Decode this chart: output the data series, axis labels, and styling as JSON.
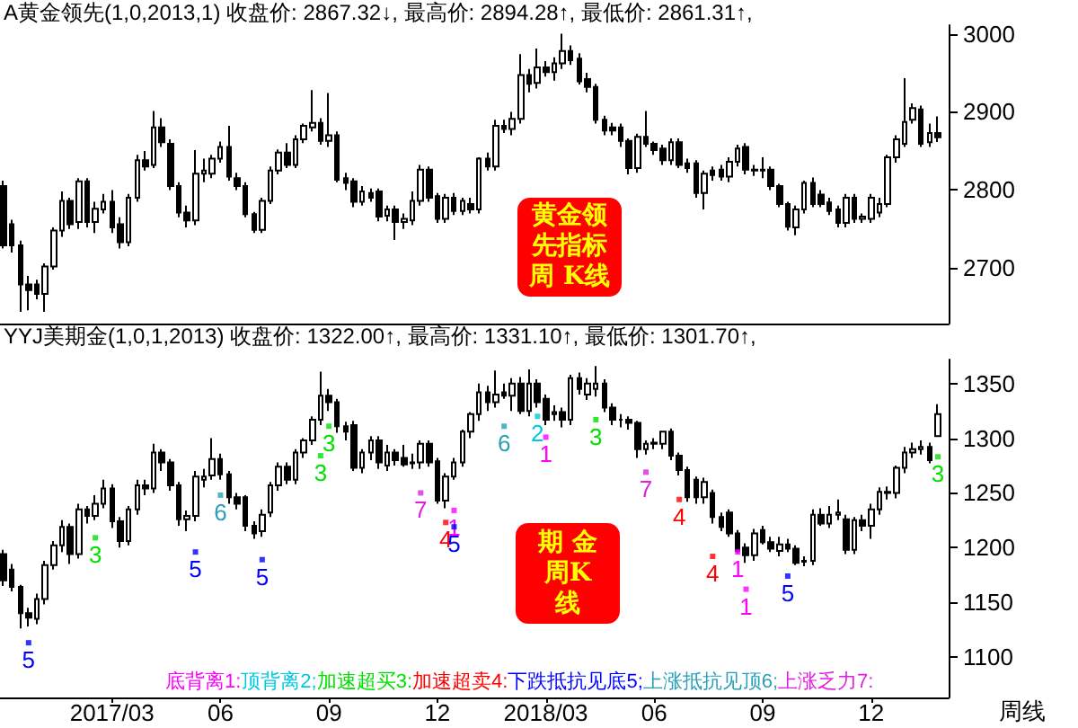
{
  "chart_data": [
    {
      "type": "candlestick",
      "title": "A黄金领先(1,0,2013,1) 收盘价: 2867.32↓, 最高价: 2894.28↑, 最低价: 2861.31↑,",
      "color": "#000000",
      "xlim": [
        "2016-12-02",
        "2019-02-06"
      ],
      "ylim": [
        2629,
        3011
      ],
      "yticks": [
        2700,
        2800,
        2900,
        3000
      ],
      "tick_labels": "y",
      "annotations": [
        "黄金领先指标周 K线"
      ],
      "x": [
        "2016-12-05",
        "2016-12-12",
        "2016-12-19",
        "2016-12-26",
        "2017-01-02",
        "2017-01-09",
        "2017-01-16",
        "2017-01-23",
        "2017-01-30",
        "2017-02-06",
        "2017-02-13",
        "2017-02-20",
        "2017-02-27",
        "2017-03-06",
        "2017-03-13",
        "2017-03-20",
        "2017-03-27",
        "2017-04-03",
        "2017-04-10",
        "2017-04-17",
        "2017-04-24",
        "2017-05-01",
        "2017-05-08",
        "2017-05-15",
        "2017-05-22",
        "2017-05-29",
        "2017-06-05",
        "2017-06-12",
        "2017-06-19",
        "2017-06-26",
        "2017-07-03",
        "2017-07-10",
        "2017-07-17",
        "2017-07-24",
        "2017-07-31",
        "2017-08-07",
        "2017-08-14",
        "2017-08-21",
        "2017-08-28",
        "2017-09-04",
        "2017-09-11",
        "2017-09-18",
        "2017-09-25",
        "2017-10-02",
        "2017-10-09",
        "2017-10-16",
        "2017-10-23",
        "2017-10-30",
        "2017-11-06",
        "2017-11-13",
        "2017-11-20",
        "2017-11-27",
        "2017-12-04",
        "2017-12-11",
        "2017-12-18",
        "2017-12-25",
        "2018-01-01",
        "2018-01-08",
        "2018-01-15",
        "2018-01-22",
        "2018-01-29",
        "2018-02-05",
        "2018-02-12",
        "2018-02-19",
        "2018-02-26",
        "2018-03-05",
        "2018-03-12",
        "2018-03-19",
        "2018-03-26",
        "2018-04-02",
        "2018-04-09",
        "2018-04-16",
        "2018-04-23",
        "2018-04-30",
        "2018-05-07",
        "2018-05-14",
        "2018-05-21",
        "2018-05-28",
        "2018-06-04",
        "2018-06-11",
        "2018-06-18",
        "2018-06-25",
        "2018-07-02",
        "2018-07-09",
        "2018-07-16",
        "2018-07-23",
        "2018-07-30",
        "2018-08-06",
        "2018-08-13",
        "2018-08-20",
        "2018-08-27",
        "2018-09-03",
        "2018-09-10",
        "2018-09-17",
        "2018-09-24",
        "2018-10-01",
        "2018-10-08",
        "2018-10-15",
        "2018-10-22",
        "2018-10-29",
        "2018-11-05",
        "2018-11-12",
        "2018-11-19",
        "2018-11-26",
        "2018-12-03",
        "2018-12-10",
        "2018-12-17",
        "2018-12-24",
        "2018-12-31",
        "2019-01-07",
        "2019-01-14",
        "2019-01-21",
        "2019-01-28"
      ],
      "ohlc": [
        [
          2805,
          2812,
          2725,
          2729
        ],
        [
          2756,
          2762,
          2720,
          2729
        ],
        [
          2729,
          2735,
          2644,
          2679
        ],
        [
          2679,
          2690,
          2646,
          2672
        ],
        [
          2679,
          2685,
          2660,
          2667
        ],
        [
          2667,
          2706,
          2644,
          2702
        ],
        [
          2702,
          2752,
          2698,
          2748
        ],
        [
          2748,
          2798,
          2740,
          2786
        ],
        [
          2786,
          2790,
          2750,
          2756
        ],
        [
          2759,
          2815,
          2750,
          2811
        ],
        [
          2811,
          2815,
          2752,
          2759
        ],
        [
          2759,
          2785,
          2745,
          2776
        ],
        [
          2775,
          2795,
          2770,
          2785
        ],
        [
          2785,
          2800,
          2745,
          2752
        ],
        [
          2756,
          2765,
          2725,
          2733
        ],
        [
          2733,
          2795,
          2728,
          2790
        ],
        [
          2790,
          2845,
          2785,
          2838
        ],
        [
          2838,
          2850,
          2825,
          2830
        ],
        [
          2832,
          2901,
          2828,
          2880
        ],
        [
          2880,
          2892,
          2855,
          2861
        ],
        [
          2859,
          2865,
          2800,
          2805
        ],
        [
          2805,
          2810,
          2765,
          2771
        ],
        [
          2771,
          2780,
          2752,
          2761
        ],
        [
          2761,
          2851,
          2755,
          2821
        ],
        [
          2821,
          2840,
          2810,
          2825
        ],
        [
          2821,
          2845,
          2815,
          2840
        ],
        [
          2840,
          2862,
          2835,
          2855
        ],
        [
          2855,
          2882,
          2812,
          2817
        ],
        [
          2815,
          2822,
          2800,
          2805
        ],
        [
          2805,
          2810,
          2765,
          2769
        ],
        [
          2769,
          2772,
          2745,
          2749
        ],
        [
          2749,
          2790,
          2745,
          2786
        ],
        [
          2786,
          2830,
          2782,
          2825
        ],
        [
          2825,
          2852,
          2820,
          2848
        ],
        [
          2848,
          2860,
          2828,
          2832
        ],
        [
          2832,
          2870,
          2828,
          2865
        ],
        [
          2865,
          2885,
          2860,
          2882
        ],
        [
          2880,
          2928,
          2875,
          2886
        ],
        [
          2886,
          2892,
          2858,
          2863
        ],
        [
          2863,
          2924,
          2855,
          2870
        ],
        [
          2870,
          2875,
          2810,
          2813
        ],
        [
          2815,
          2822,
          2800,
          2809
        ],
        [
          2811,
          2815,
          2778,
          2785
        ],
        [
          2785,
          2805,
          2780,
          2798
        ],
        [
          2796,
          2802,
          2785,
          2790
        ],
        [
          2798,
          2802,
          2760,
          2766
        ],
        [
          2767,
          2780,
          2760,
          2775
        ],
        [
          2775,
          2780,
          2736,
          2759
        ],
        [
          2759,
          2770,
          2750,
          2763
        ],
        [
          2761,
          2798,
          2755,
          2786
        ],
        [
          2786,
          2832,
          2780,
          2826
        ],
        [
          2826,
          2830,
          2785,
          2790
        ],
        [
          2792,
          2796,
          2758,
          2763
        ],
        [
          2763,
          2795,
          2758,
          2790
        ],
        [
          2790,
          2796,
          2768,
          2773
        ],
        [
          2773,
          2790,
          2768,
          2786
        ],
        [
          2782,
          2790,
          2770,
          2775
        ],
        [
          2775,
          2842,
          2770,
          2840
        ],
        [
          2840,
          2848,
          2825,
          2830
        ],
        [
          2830,
          2890,
          2825,
          2882
        ],
        [
          2882,
          2890,
          2873,
          2878
        ],
        [
          2878,
          2900,
          2870,
          2891
        ],
        [
          2891,
          2974,
          2885,
          2947
        ],
        [
          2947,
          2955,
          2925,
          2936
        ],
        [
          2937,
          2981,
          2930,
          2957
        ],
        [
          2957,
          2965,
          2945,
          2951
        ],
        [
          2951,
          2970,
          2940,
          2962
        ],
        [
          2962,
          3000,
          2955,
          2978
        ],
        [
          2978,
          2985,
          2960,
          2966
        ],
        [
          2968,
          2975,
          2935,
          2939
        ],
        [
          2942,
          2950,
          2925,
          2932
        ],
        [
          2932,
          2936,
          2885,
          2890
        ],
        [
          2890,
          2895,
          2870,
          2876
        ],
        [
          2880,
          2886,
          2870,
          2876
        ],
        [
          2880,
          2885,
          2855,
          2863
        ],
        [
          2863,
          2866,
          2820,
          2828
        ],
        [
          2828,
          2872,
          2822,
          2868
        ],
        [
          2868,
          2901,
          2855,
          2859
        ],
        [
          2859,
          2862,
          2845,
          2851
        ],
        [
          2853,
          2858,
          2832,
          2838
        ],
        [
          2838,
          2866,
          2832,
          2861
        ],
        [
          2861,
          2866,
          2828,
          2832
        ],
        [
          2834,
          2840,
          2822,
          2828
        ],
        [
          2834,
          2838,
          2790,
          2796
        ],
        [
          2796,
          2825,
          2775,
          2821
        ],
        [
          2825,
          2830,
          2812,
          2819
        ],
        [
          2826,
          2832,
          2812,
          2817
        ],
        [
          2817,
          2842,
          2810,
          2836
        ],
        [
          2836,
          2858,
          2830,
          2853
        ],
        [
          2855,
          2860,
          2820,
          2826
        ],
        [
          2826,
          2832,
          2818,
          2825
        ],
        [
          2825,
          2842,
          2815,
          2826
        ],
        [
          2826,
          2830,
          2800,
          2805
        ],
        [
          2805,
          2808,
          2778,
          2782
        ],
        [
          2782,
          2785,
          2748,
          2753
        ],
        [
          2752,
          2780,
          2742,
          2775
        ],
        [
          2775,
          2812,
          2770,
          2809
        ],
        [
          2809,
          2816,
          2778,
          2782
        ],
        [
          2794,
          2800,
          2778,
          2782
        ],
        [
          2784,
          2790,
          2768,
          2773
        ],
        [
          2775,
          2780,
          2752,
          2758
        ],
        [
          2758,
          2795,
          2752,
          2790
        ],
        [
          2790,
          2795,
          2758,
          2763
        ],
        [
          2763,
          2770,
          2758,
          2766
        ],
        [
          2763,
          2795,
          2758,
          2790
        ],
        [
          2771,
          2790,
          2765,
          2782
        ],
        [
          2782,
          2845,
          2778,
          2842
        ],
        [
          2842,
          2870,
          2835,
          2865
        ],
        [
          2859,
          2943,
          2855,
          2887
        ],
        [
          2890,
          2911,
          2885,
          2905
        ],
        [
          2903,
          2908,
          2855,
          2859
        ],
        [
          2861,
          2885,
          2855,
          2873
        ],
        [
          2873,
          2894.28,
          2861.31,
          2867.32
        ]
      ]
    },
    {
      "type": "candlestick",
      "title": "YYJ美期金(1,0,1,2013) 收盘价: 1322.00↑, 最高价: 1331.10↑, 最低价: 1301.70↑,",
      "color": "#000000",
      "xlim": [
        "2016-12-02",
        "2019-02-06"
      ],
      "ylim": [
        1063,
        1372
      ],
      "yticks": [
        1100,
        1150,
        1200,
        1250,
        1300,
        1350
      ],
      "xticks": [
        {
          "value": "2017-03-06",
          "label": "2017/03"
        },
        {
          "value": "2017-06-05",
          "label": "06"
        },
        {
          "value": "2017-09-04",
          "label": "09"
        },
        {
          "value": "2017-12-04",
          "label": "12"
        },
        {
          "value": "2018-03-05",
          "label": "2018/03"
        },
        {
          "value": "2018-06-04",
          "label": "06"
        },
        {
          "value": "2018-09-03",
          "label": "09"
        },
        {
          "value": "2018-12-03",
          "label": "12"
        }
      ],
      "annotations": [
        "期 金周K线",
        "周线",
        {
          "text": "1",
          "x": "2017-12-18",
          "y": 1234
        },
        {
          "text": "1",
          "x": "2018-03-05",
          "y": 1301
        },
        {
          "text": "1",
          "x": "2018-08-13",
          "y": 1196
        },
        {
          "text": "1",
          "x": "2018-08-20",
          "y": 1162
        },
        {
          "text": "2",
          "x": "2018-02-26",
          "y": 1320
        },
        {
          "text": "3",
          "x": "2017-02-20",
          "y": 1209
        },
        {
          "text": "3",
          "x": "2017-08-28",
          "y": 1284
        },
        {
          "text": "3",
          "x": "2017-09-04",
          "y": 1311
        },
        {
          "text": "3",
          "x": "2018-04-16",
          "y": 1317
        },
        {
          "text": "3",
          "x": "2019-01-28",
          "y": 1283
        },
        {
          "text": "4",
          "x": "2017-12-11",
          "y": 1223
        },
        {
          "text": "4",
          "x": "2018-06-25",
          "y": 1244
        },
        {
          "text": "4",
          "x": "2018-07-23",
          "y": 1192
        },
        {
          "text": "5",
          "x": "2016-12-26",
          "y": 1113
        },
        {
          "text": "5",
          "x": "2017-05-15",
          "y": 1196
        },
        {
          "text": "5",
          "x": "2017-07-10",
          "y": 1189
        },
        {
          "text": "5",
          "x": "2017-12-18",
          "y": 1219
        },
        {
          "text": "5",
          "x": "2018-09-24",
          "y": 1174
        },
        {
          "text": "6",
          "x": "2017-06-05",
          "y": 1248
        },
        {
          "text": "6",
          "x": "2018-01-29",
          "y": 1311
        },
        {
          "text": "7",
          "x": "2017-11-20",
          "y": 1250
        },
        {
          "text": "7",
          "x": "2018-05-28",
          "y": 1269
        }
      ],
      "legend": "bottom",
      "marker": "square",
      "x": [
        "2016-12-05",
        "2016-12-12",
        "2016-12-19",
        "2016-12-26",
        "2017-01-02",
        "2017-01-09",
        "2017-01-16",
        "2017-01-23",
        "2017-01-30",
        "2017-02-06",
        "2017-02-13",
        "2017-02-20",
        "2017-02-27",
        "2017-03-06",
        "2017-03-13",
        "2017-03-20",
        "2017-03-27",
        "2017-04-03",
        "2017-04-10",
        "2017-04-17",
        "2017-04-24",
        "2017-05-01",
        "2017-05-08",
        "2017-05-15",
        "2017-05-22",
        "2017-05-29",
        "2017-06-05",
        "2017-06-12",
        "2017-06-19",
        "2017-06-26",
        "2017-07-03",
        "2017-07-10",
        "2017-07-17",
        "2017-07-24",
        "2017-07-31",
        "2017-08-07",
        "2017-08-14",
        "2017-08-21",
        "2017-08-28",
        "2017-09-04",
        "2017-09-11",
        "2017-09-18",
        "2017-09-25",
        "2017-10-02",
        "2017-10-09",
        "2017-10-16",
        "2017-10-23",
        "2017-10-30",
        "2017-11-06",
        "2017-11-13",
        "2017-11-20",
        "2017-11-27",
        "2017-12-04",
        "2017-12-11",
        "2017-12-18",
        "2017-12-25",
        "2018-01-01",
        "2018-01-08",
        "2018-01-15",
        "2018-01-22",
        "2018-01-29",
        "2018-02-05",
        "2018-02-12",
        "2018-02-19",
        "2018-02-26",
        "2018-03-05",
        "2018-03-12",
        "2018-03-19",
        "2018-03-26",
        "2018-04-02",
        "2018-04-09",
        "2018-04-16",
        "2018-04-23",
        "2018-04-30",
        "2018-05-07",
        "2018-05-14",
        "2018-05-21",
        "2018-05-28",
        "2018-06-04",
        "2018-06-11",
        "2018-06-18",
        "2018-06-25",
        "2018-07-02",
        "2018-07-09",
        "2018-07-16",
        "2018-07-23",
        "2018-07-30",
        "2018-08-06",
        "2018-08-13",
        "2018-08-20",
        "2018-08-27",
        "2018-09-03",
        "2018-09-10",
        "2018-09-17",
        "2018-09-24",
        "2018-10-01",
        "2018-10-08",
        "2018-10-15",
        "2018-10-22",
        "2018-10-29",
        "2018-11-05",
        "2018-11-12",
        "2018-11-19",
        "2018-11-26",
        "2018-12-03",
        "2018-12-10",
        "2018-12-17",
        "2018-12-24",
        "2018-12-31",
        "2019-01-07",
        "2019-01-14",
        "2019-01-21",
        "2019-01-28"
      ],
      "ohlc": [
        [
          1194,
          1198,
          1165,
          1170
        ],
        [
          1180,
          1185,
          1160,
          1164
        ],
        [
          1164,
          1166,
          1126,
          1140
        ],
        [
          1140,
          1145,
          1128,
          1136
        ],
        [
          1135,
          1158,
          1130,
          1153
        ],
        [
          1153,
          1188,
          1148,
          1184
        ],
        [
          1184,
          1206,
          1180,
          1202
        ],
        [
          1202,
          1225,
          1196,
          1219
        ],
        [
          1219,
          1222,
          1185,
          1194
        ],
        [
          1194,
          1240,
          1190,
          1235
        ],
        [
          1235,
          1238,
          1222,
          1229
        ],
        [
          1229,
          1248,
          1225,
          1240
        ],
        [
          1240,
          1262,
          1236,
          1254
        ],
        [
          1254,
          1258,
          1218,
          1224
        ],
        [
          1224,
          1228,
          1200,
          1206
        ],
        [
          1206,
          1238,
          1202,
          1235
        ],
        [
          1235,
          1262,
          1230,
          1257
        ],
        [
          1257,
          1262,
          1248,
          1254
        ],
        [
          1254,
          1295,
          1250,
          1287
        ],
        [
          1287,
          1290,
          1270,
          1278
        ],
        [
          1278,
          1281,
          1252,
          1257
        ],
        [
          1257,
          1260,
          1220,
          1226
        ],
        [
          1226,
          1234,
          1215,
          1229
        ],
        [
          1229,
          1270,
          1224,
          1265
        ],
        [
          1262,
          1272,
          1255,
          1265
        ],
        [
          1266,
          1300,
          1262,
          1281
        ],
        [
          1281,
          1286,
          1262,
          1267
        ],
        [
          1267,
          1270,
          1240,
          1246
        ],
        [
          1246,
          1250,
          1235,
          1240
        ],
        [
          1246,
          1248,
          1215,
          1220
        ],
        [
          1220,
          1224,
          1208,
          1213
        ],
        [
          1215,
          1235,
          1210,
          1230
        ],
        [
          1232,
          1260,
          1228,
          1257
        ],
        [
          1257,
          1278,
          1252,
          1274
        ],
        [
          1274,
          1278,
          1258,
          1262
        ],
        [
          1262,
          1290,
          1258,
          1287
        ],
        [
          1287,
          1300,
          1282,
          1298
        ],
        [
          1298,
          1320,
          1294,
          1317
        ],
        [
          1317,
          1361,
          1312,
          1339
        ],
        [
          1339,
          1345,
          1325,
          1333
        ],
        [
          1333,
          1336,
          1305,
          1311
        ],
        [
          1311,
          1315,
          1298,
          1306
        ],
        [
          1312,
          1316,
          1270,
          1273
        ],
        [
          1273,
          1290,
          1268,
          1287
        ],
        [
          1287,
          1302,
          1280,
          1298
        ],
        [
          1298,
          1302,
          1272,
          1278
        ],
        [
          1275,
          1294,
          1270,
          1287
        ],
        [
          1287,
          1290,
          1275,
          1280
        ],
        [
          1282,
          1294,
          1274,
          1276
        ],
        [
          1277,
          1286,
          1272,
          1278
        ],
        [
          1278,
          1298,
          1272,
          1295
        ],
        [
          1295,
          1298,
          1274,
          1278
        ],
        [
          1279,
          1282,
          1240,
          1243
        ],
        [
          1243,
          1268,
          1236,
          1265
        ],
        [
          1265,
          1282,
          1262,
          1278
        ],
        [
          1278,
          1308,
          1274,
          1306
        ],
        [
          1306,
          1324,
          1300,
          1322
        ],
        [
          1322,
          1350,
          1316,
          1342
        ],
        [
          1342,
          1348,
          1325,
          1333
        ],
        [
          1333,
          1362,
          1328,
          1340
        ],
        [
          1342,
          1350,
          1336,
          1339
        ],
        [
          1339,
          1355,
          1325,
          1350
        ],
        [
          1350,
          1356,
          1322,
          1325
        ],
        [
          1325,
          1363,
          1320,
          1350
        ],
        [
          1350,
          1354,
          1328,
          1333
        ],
        [
          1336,
          1340,
          1312,
          1317
        ],
        [
          1322,
          1330,
          1316,
          1324
        ],
        [
          1324,
          1328,
          1310,
          1317
        ],
        [
          1317,
          1358,
          1312,
          1355
        ],
        [
          1355,
          1360,
          1340,
          1345
        ],
        [
          1340,
          1355,
          1335,
          1350
        ],
        [
          1345,
          1366,
          1338,
          1350
        ],
        [
          1350,
          1354,
          1324,
          1328
        ],
        [
          1328,
          1332,
          1312,
          1317
        ],
        [
          1317,
          1322,
          1310,
          1317
        ],
        [
          1317,
          1320,
          1308,
          1314
        ],
        [
          1314,
          1316,
          1282,
          1290
        ],
        [
          1290,
          1298,
          1285,
          1295
        ],
        [
          1295,
          1300,
          1290,
          1296
        ],
        [
          1295,
          1306,
          1290,
          1306
        ],
        [
          1306,
          1309,
          1280,
          1284
        ],
        [
          1284,
          1287,
          1266,
          1271
        ],
        [
          1271,
          1274,
          1242,
          1246
        ],
        [
          1262,
          1265,
          1240,
          1246
        ],
        [
          1246,
          1264,
          1240,
          1260
        ],
        [
          1250,
          1253,
          1222,
          1228
        ],
        [
          1228,
          1232,
          1215,
          1219
        ],
        [
          1232,
          1235,
          1210,
          1213
        ],
        [
          1213,
          1216,
          1195,
          1197
        ],
        [
          1200,
          1204,
          1186,
          1193
        ],
        [
          1193,
          1217,
          1188,
          1213
        ],
        [
          1216,
          1220,
          1203,
          1205
        ],
        [
          1205,
          1210,
          1196,
          1199
        ],
        [
          1197,
          1210,
          1192,
          1203
        ],
        [
          1203,
          1208,
          1196,
          1199
        ],
        [
          1199,
          1202,
          1184,
          1186
        ],
        [
          1187,
          1192,
          1183,
          1188
        ],
        [
          1188,
          1235,
          1184,
          1230
        ],
        [
          1230,
          1236,
          1220,
          1222
        ],
        [
          1222,
          1238,
          1218,
          1230
        ],
        [
          1230,
          1244,
          1225,
          1232
        ],
        [
          1226,
          1230,
          1194,
          1198
        ],
        [
          1198,
          1228,
          1194,
          1225
        ],
        [
          1225,
          1230,
          1215,
          1220
        ],
        [
          1220,
          1240,
          1208,
          1235
        ],
        [
          1235,
          1255,
          1230,
          1251
        ],
        [
          1251,
          1256,
          1244,
          1250
        ],
        [
          1250,
          1275,
          1245,
          1273
        ],
        [
          1273,
          1292,
          1268,
          1287
        ],
        [
          1287,
          1296,
          1282,
          1290
        ],
        [
          1290,
          1298,
          1285,
          1292
        ],
        [
          1292,
          1296,
          1277,
          1280
        ],
        [
          1302,
          1331.1,
          1301.7,
          1322
        ]
      ],
      "series": [
        {
          "type": "scatter",
          "name": "底背离1:",
          "color": "#ff00ff",
          "x": [
            "2017-12-18",
            "2018-03-05",
            "2018-08-13",
            "2018-08-20"
          ],
          "values": [
            1234,
            1301,
            1196,
            1162
          ]
        },
        {
          "type": "scatter",
          "name": "顶背离2;",
          "color": "#00c8e0",
          "x": [
            "2018-02-26"
          ],
          "values": [
            1320
          ]
        },
        {
          "type": "scatter",
          "name": "加速超买3:",
          "color": "#00e000",
          "x": [
            "2017-02-20",
            "2017-08-28",
            "2017-09-04",
            "2018-04-16",
            "2019-01-28"
          ],
          "values": [
            1209,
            1284,
            1311,
            1317,
            1283
          ]
        },
        {
          "type": "scatter",
          "name": "加速超卖4:",
          "color": "#ff0000",
          "x": [
            "2017-12-11",
            "2018-06-25",
            "2018-07-23"
          ],
          "values": [
            1223,
            1244,
            1192
          ]
        },
        {
          "type": "scatter",
          "name": "下跌抵抗见底5;",
          "color": "#0000ff",
          "x": [
            "2016-12-26",
            "2017-05-15",
            "2017-07-10",
            "2017-12-18",
            "2018-09-24"
          ],
          "values": [
            1113,
            1196,
            1189,
            1219,
            1174
          ]
        },
        {
          "type": "scatter",
          "name": "上涨抵抗见顶6;",
          "color": "#2aa0b8",
          "x": [
            "2017-06-05",
            "2018-01-29"
          ],
          "values": [
            1248,
            1311
          ]
        },
        {
          "type": "scatter",
          "name": "上涨乏力7:",
          "color": "#e020e0",
          "x": [
            "2017-11-20",
            "2018-05-28"
          ],
          "values": [
            1250,
            1269
          ]
        }
      ]
    }
  ]
}
